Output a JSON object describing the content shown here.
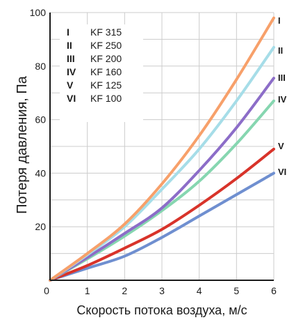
{
  "chart_data": {
    "type": "line",
    "title": "",
    "xlabel": "Скорость потока воздуха, м/с",
    "ylabel": "Потеря давления, Па",
    "xlim": [
      0,
      6
    ],
    "ylim": [
      0,
      100
    ],
    "x_ticks": [
      "0",
      "1",
      "2",
      "3",
      "4",
      "5",
      "6"
    ],
    "y_ticks": [
      "20",
      "40",
      "60",
      "80",
      "100"
    ],
    "grid": true,
    "legend_position": "top-left",
    "legend": [
      {
        "roman": "I",
        "model": "KF 315"
      },
      {
        "roman": "II",
        "model": "KF 250"
      },
      {
        "roman": "III",
        "model": "KF 200"
      },
      {
        "roman": "IV",
        "model": "KF 160"
      },
      {
        "roman": "V",
        "model": "KF 125"
      },
      {
        "roman": "VI",
        "model": "KF 100"
      }
    ],
    "end_labels": [
      "I",
      "II",
      "III",
      "IV",
      "V",
      "VI"
    ],
    "x": [
      0,
      1,
      2,
      3,
      4,
      5,
      6
    ],
    "series": [
      {
        "color": "#f7a06a",
        "values": [
          0,
          10,
          21,
          36,
          54,
          75,
          98
        ]
      },
      {
        "color": "#a6dde8",
        "values": [
          0,
          9.5,
          20,
          34,
          49,
          67,
          87
        ]
      },
      {
        "color": "#8c6dc8",
        "values": [
          0,
          8.5,
          17.5,
          27,
          41,
          57,
          75.5
        ]
      },
      {
        "color": "#86d6b0",
        "values": [
          0,
          8,
          16.5,
          26,
          37,
          51,
          67
        ]
      },
      {
        "color": "#d8332a",
        "values": [
          0,
          5.5,
          12,
          19,
          28,
          38,
          49
        ]
      },
      {
        "color": "#6f8fd0",
        "values": [
          0,
          4.5,
          9,
          16,
          24,
          32,
          40
        ]
      }
    ]
  }
}
